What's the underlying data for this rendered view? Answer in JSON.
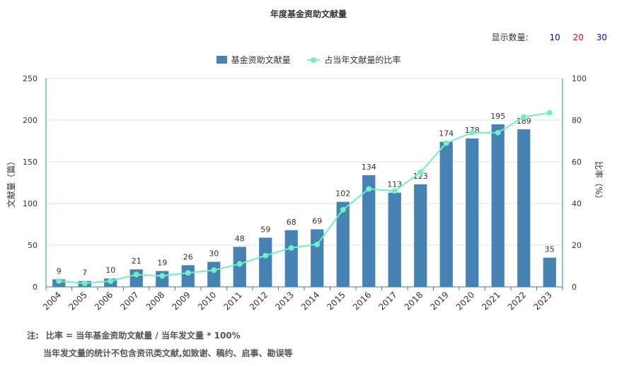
{
  "title": "年度基金资助文献量",
  "count_selector": {
    "label": "显示数量:",
    "options": [
      {
        "label": "10",
        "color": "#0000ff"
      },
      {
        "label": "20",
        "color": "#ff0000"
      },
      {
        "label": "30",
        "color": "#0000ff"
      }
    ]
  },
  "colors": {
    "bar": "#4682b4",
    "line": "#6ff0c2",
    "axis": "#2f7fa8",
    "grid": "#e0e0e0"
  },
  "chart_data": {
    "type": "bar",
    "categories": [
      "2004",
      "2005",
      "2006",
      "2007",
      "2008",
      "2009",
      "2010",
      "2011",
      "2012",
      "2013",
      "2014",
      "2015",
      "2016",
      "2017",
      "2018",
      "2019",
      "2020",
      "2021",
      "2022",
      "2023"
    ],
    "series": [
      {
        "name": "基金资助文献量",
        "type": "bar",
        "axis": "left",
        "values": [
          9,
          7,
          10,
          21,
          19,
          26,
          30,
          48,
          59,
          68,
          69,
          102,
          134,
          113,
          123,
          174,
          178,
          195,
          189,
          35
        ]
      },
      {
        "name": "占当年文献量的比率",
        "type": "line",
        "axis": "right",
        "values": [
          2.8,
          1.7,
          2.8,
          5.9,
          5.3,
          6.7,
          8.0,
          11.0,
          15.0,
          18.7,
          20.4,
          37.0,
          47.0,
          46.0,
          55.0,
          69.0,
          74.0,
          74.0,
          81.5,
          83.5
        ]
      }
    ],
    "ylabel": "文献量（篇）",
    "ylabel_right": "比率（%）",
    "ylim": [
      0,
      250
    ],
    "ylim_right": [
      0,
      100
    ],
    "yticks": [
      0,
      50,
      100,
      150,
      200,
      250
    ],
    "yticks_right": [
      0,
      20,
      40,
      60,
      80,
      100
    ],
    "grid": true,
    "legend_position": "top-center"
  },
  "notes": {
    "prefix": "注:",
    "line1": "比率 = 当年基金资助文献量 / 当年发文量 * 100%",
    "line2": "当年发文量的统计不包含资讯类文献,如致谢、稿约、启事、勘误等"
  }
}
